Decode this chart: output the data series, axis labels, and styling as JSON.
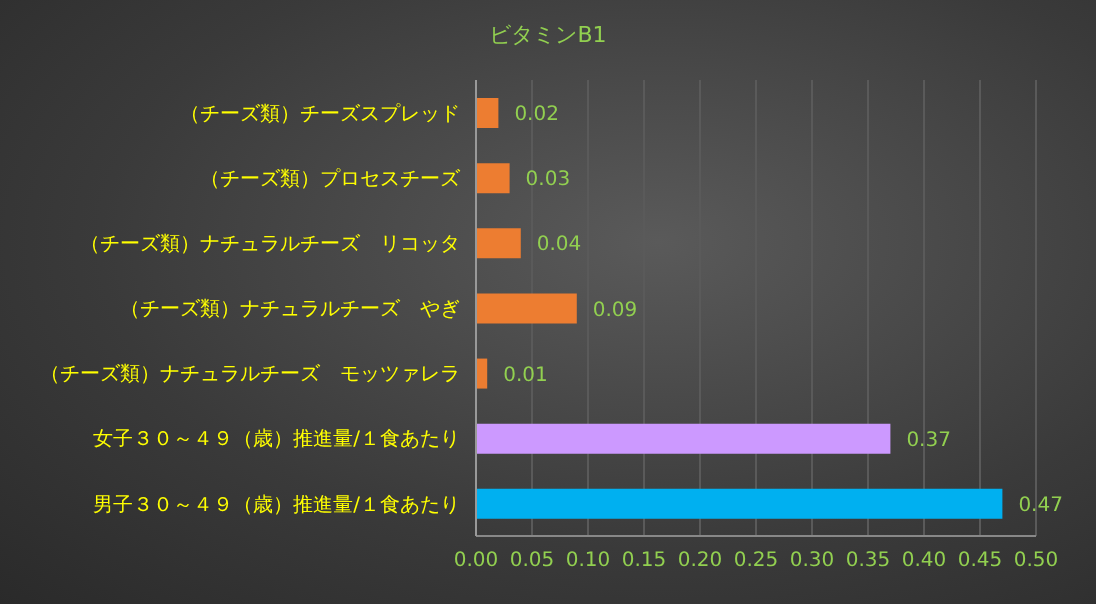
{
  "chart_data": {
    "type": "bar",
    "orientation": "horizontal",
    "title": "ビタミンB1",
    "categories": [
      "（チーズ類）チーズスプレッド",
      "（チーズ類）プロセスチーズ",
      "（チーズ類）ナチュラルチーズ　リコッタ",
      "（チーズ類）ナチュラルチーズ　やぎ",
      "（チーズ類）ナチュラルチーズ　モッツァレラ",
      "女子３０～４９（歳）推進量/１食あたり",
      "男子３０～４９（歳）推進量/１食あたり"
    ],
    "values": [
      0.02,
      0.03,
      0.04,
      0.09,
      0.01,
      0.37,
      0.47
    ],
    "colors": [
      "#ed7d31",
      "#ed7d31",
      "#ed7d31",
      "#ed7d31",
      "#ed7d31",
      "#cc99ff",
      "#00b0f0"
    ],
    "data_labels": true,
    "xlim": [
      0,
      0.5
    ],
    "xticks": [
      {
        "value": 0,
        "label": "0.00"
      },
      0.05,
      {
        "value": 0.1,
        "label": "0.10"
      },
      0.15,
      {
        "value": 0.2,
        "label": "0.20"
      },
      0.25,
      {
        "value": 0.3,
        "label": "0.30"
      },
      0.35,
      {
        "value": 0.4,
        "label": "0.40"
      },
      0.45,
      {
        "value": 0.5,
        "label": "0.50"
      }
    ],
    "grid": "x"
  }
}
